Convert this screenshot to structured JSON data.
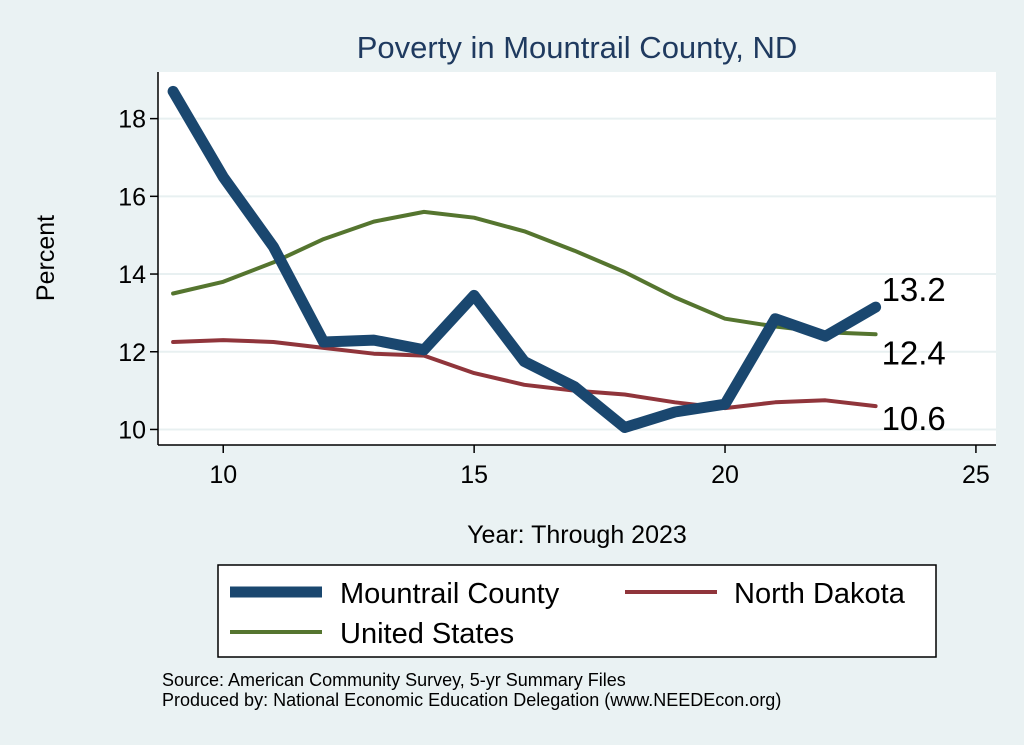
{
  "chart_data": {
    "type": "line",
    "title": "Poverty in Mountrail County, ND",
    "xlabel": "Year: Through 2023",
    "ylabel": "Percent",
    "xlim": [
      8.7,
      25.4
    ],
    "ylim": [
      9.6,
      19.2
    ],
    "xticks": [
      10,
      15,
      20,
      25
    ],
    "yticks": [
      10,
      12,
      14,
      16,
      18
    ],
    "grid": true,
    "legend_position": "bottom",
    "x": [
      9,
      10,
      11,
      12,
      13,
      14,
      15,
      16,
      17,
      18,
      19,
      20,
      21,
      22,
      23
    ],
    "series": [
      {
        "name": "Mountrail County",
        "color": "#1a476f",
        "width": 11,
        "values": [
          18.7,
          16.5,
          14.7,
          12.25,
          12.3,
          12.05,
          13.45,
          11.75,
          11.1,
          10.05,
          10.45,
          10.65,
          12.85,
          12.4,
          13.15
        ],
        "end_label": "13.2"
      },
      {
        "name": "North Dakota",
        "color": "#90353b",
        "width": 4,
        "values": [
          12.25,
          12.3,
          12.25,
          12.1,
          11.95,
          11.9,
          11.45,
          11.15,
          11.0,
          10.9,
          10.7,
          10.55,
          10.7,
          10.75,
          10.6
        ],
        "end_label": "10.6"
      },
      {
        "name": "United States",
        "color": "#55752f",
        "width": 4,
        "values": [
          13.5,
          13.8,
          14.3,
          14.9,
          15.35,
          15.6,
          15.45,
          15.1,
          14.6,
          14.05,
          13.4,
          12.85,
          12.65,
          12.5,
          12.45
        ],
        "end_label": "12.4"
      }
    ]
  },
  "source": {
    "line1": "Source: American Community Survey, 5-yr Summary Files",
    "line2": "Produced by: National Economic Education Delegation (www.NEEDEcon.org)"
  }
}
